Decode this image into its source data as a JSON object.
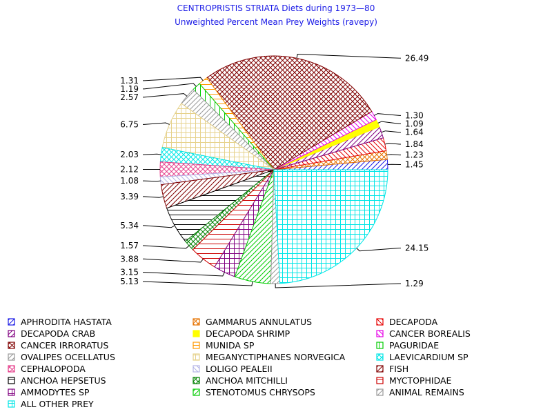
{
  "chart_data": {
    "type": "pie",
    "title": "CENTROPRISTIS STRIATA Diets during 1973—80",
    "subtitle": "Unweighted Percent Mean Prey Weights (ravepy)",
    "slices": [
      {
        "name": "APHRODITA HASTATA",
        "value": 1.45,
        "label": "1.45",
        "color": "#1a1ae6",
        "pattern": "diag-fwd"
      },
      {
        "name": "GAMMARUS ANNULATUS",
        "value": 1.23,
        "label": "1.23",
        "color": "#e67300",
        "pattern": "cross-diag"
      },
      {
        "name": "DECAPODA",
        "value": 1.84,
        "label": "1.84",
        "color": "#e60000",
        "pattern": "diag-back"
      },
      {
        "name": "DECAPODA CRAB",
        "value": 1.64,
        "label": "1.64",
        "color": "#800080",
        "pattern": "diag-fwd"
      },
      {
        "name": "DECAPODA SHRIMP",
        "value": 1.09,
        "label": "1.09",
        "color": "#ffff00",
        "pattern": "solid"
      },
      {
        "name": "CANCER BOREALIS",
        "value": 1.3,
        "label": "1.30",
        "color": "#e600e6",
        "pattern": "diag-back"
      },
      {
        "name": "CANCER IRRORATUS",
        "value": 26.49,
        "label": "26.49",
        "color": "#800000",
        "pattern": "cross-diag"
      },
      {
        "name": "MUNIDA SP",
        "value": 1.31,
        "label": "1.31",
        "color": "#ff9900",
        "pattern": "horizontal"
      },
      {
        "name": "PAGURIDAE",
        "value": 1.19,
        "label": "1.19",
        "color": "#00cc00",
        "pattern": "vertical"
      },
      {
        "name": "OVALIPES OCELLATUS",
        "value": 2.57,
        "label": "2.57",
        "color": "#999999",
        "pattern": "diag-fwd"
      },
      {
        "name": "MEGANYCTIPHANES NORVEGICA",
        "value": 6.75,
        "label": "6.75",
        "color": "#e6d28c",
        "pattern": "grid"
      },
      {
        "name": "LAEVICARDIUM SP",
        "value": 2.03,
        "label": "2.03",
        "color": "#00e6e6",
        "pattern": "cross-diag"
      },
      {
        "name": "CEPHALOPODA",
        "value": 2.12,
        "label": "2.12",
        "color": "#e6408c",
        "pattern": "cross-diag"
      },
      {
        "name": "LOLIGO PEALEII",
        "value": 1.08,
        "label": "1.08",
        "color": "#b3b3e6",
        "pattern": "diag-back"
      },
      {
        "name": "FISH",
        "value": 3.39,
        "label": "3.39",
        "color": "#800000",
        "pattern": "diag-fwd"
      },
      {
        "name": "ANCHOA HEPSETUS",
        "value": 5.34,
        "label": "5.34",
        "color": "#000000",
        "pattern": "horizontal"
      },
      {
        "name": "ANCHOA MITCHILLI",
        "value": 1.57,
        "label": "1.57",
        "color": "#008000",
        "pattern": "cross-diag"
      },
      {
        "name": "MYCTOPHIDAE",
        "value": 3.88,
        "label": "3.88",
        "color": "#cc0000",
        "pattern": "horizontal"
      },
      {
        "name": "AMMODYTES SP",
        "value": 3.15,
        "label": "3.15",
        "color": "#800080",
        "pattern": "grid"
      },
      {
        "name": "STENOTOMUS CHRYSOPS",
        "value": 5.13,
        "label": "5.13",
        "color": "#00cc00",
        "pattern": "diag-fwd"
      },
      {
        "name": "ANIMAL REMAINS",
        "value": 1.29,
        "label": "1.29",
        "color": "#999999",
        "pattern": "diag-fwd"
      },
      {
        "name": "ALL OTHER PREY",
        "value": 24.15,
        "label": "24.15",
        "color": "#00e6e6",
        "pattern": "grid"
      }
    ],
    "legend_placement": "bottom",
    "legend_columns": 3
  }
}
